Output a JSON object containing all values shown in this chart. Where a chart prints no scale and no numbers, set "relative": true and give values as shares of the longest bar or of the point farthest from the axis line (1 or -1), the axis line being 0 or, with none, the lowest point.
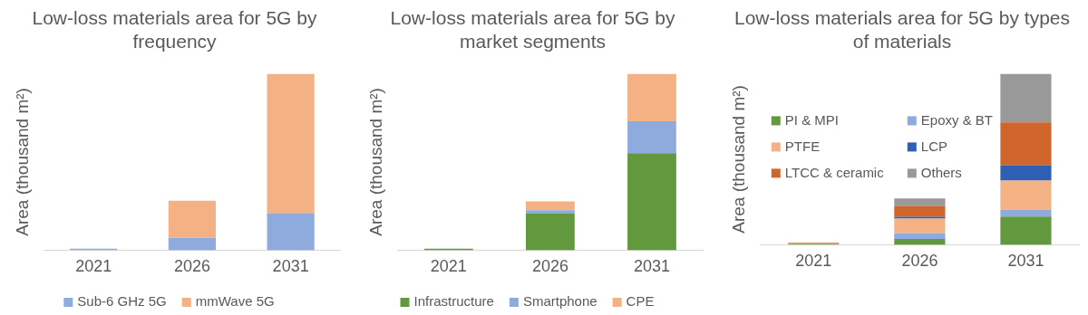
{
  "chart_data": [
    {
      "type": "bar",
      "title": "Low-loss materials area for 5G by frequency",
      "ylabel": "Area (thousand m²)",
      "categories": [
        "2021",
        "2026",
        "2031"
      ],
      "stacked": true,
      "relative": true,
      "legend": "bottom",
      "series": [
        {
          "name": "Sub-6 GHz 5G",
          "color": "#8faadc",
          "values": [
            0.008,
            0.07,
            0.21
          ]
        },
        {
          "name": "mmWave 5G",
          "color": "#f4b183",
          "values": [
            null,
            0.21,
            0.79
          ]
        }
      ]
    },
    {
      "type": "bar",
      "title": "Low-loss materials area for 5G by market segments",
      "ylabel": "Area (thousand m²)",
      "categories": [
        "2021",
        "2026",
        "2031"
      ],
      "stacked": true,
      "relative": true,
      "legend": "bottom",
      "series": [
        {
          "name": "Infrastructure",
          "color": "#62993e",
          "values": [
            0.008,
            0.21,
            0.55
          ]
        },
        {
          "name": "Smartphone",
          "color": "#8faadc",
          "values": [
            0,
            0.017,
            0.18
          ]
        },
        {
          "name": "CPE",
          "color": "#f4b183",
          "values": [
            0,
            0.05,
            0.27
          ]
        }
      ]
    },
    {
      "type": "bar",
      "title": "Low-loss materials area for 5G by types of materials",
      "ylabel": "Area (thousand m²)",
      "categories": [
        "2021",
        "2026",
        "2031"
      ],
      "stacked": true,
      "relative": true,
      "legend": "top left",
      "series": [
        {
          "name": "PI & MPI",
          "color": "#62993e",
          "values": [
            0.005,
            0.034,
            0.165
          ]
        },
        {
          "name": "Epoxy & BT",
          "color": "#8faadc",
          "values": [
            0,
            0.034,
            0.04
          ]
        },
        {
          "name": "PTFE",
          "color": "#f4b183",
          "values": [
            0.003,
            0.085,
            0.17
          ]
        },
        {
          "name": "LCP",
          "color": "#2f5eb5",
          "values": [
            0,
            0.011,
            0.09
          ]
        },
        {
          "name": "LTCC & ceramic",
          "color": "#d0652b",
          "values": [
            0.003,
            0.062,
            0.25
          ]
        },
        {
          "name": "Others",
          "color": "#999999",
          "values": [
            0,
            0.045,
            0.285
          ]
        }
      ]
    }
  ]
}
